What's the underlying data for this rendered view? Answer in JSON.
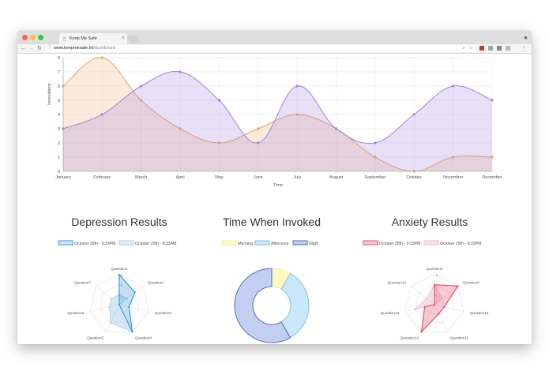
{
  "browser": {
    "tab_title": "Keep Me Safe",
    "url_host": "www.keepmesafe.ml",
    "url_path": "/dashboard"
  },
  "line_chart": {
    "ylabel": "Invocations",
    "xlabel": "Time"
  },
  "radar_depression": {
    "title": "Depression Results",
    "legend": [
      "October 28th - 9:33PM",
      "October 29th - 8:33AM"
    ]
  },
  "donut_time": {
    "title": "Time When Invoked",
    "legend": [
      "Morning",
      "Afternoon",
      "Night"
    ]
  },
  "radar_anxiety": {
    "title": "Anxiety Results",
    "legend": [
      "October 28th - 9:33PM",
      "October 29th - 9:33PM"
    ]
  },
  "chart_data": [
    {
      "type": "area",
      "categories": [
        "January",
        "February",
        "March",
        "April",
        "May",
        "June",
        "July",
        "August",
        "September",
        "October",
        "November",
        "December"
      ],
      "series": [
        {
          "values": [
            6,
            8,
            5,
            3,
            2,
            3,
            4,
            3,
            1,
            0,
            1,
            1
          ],
          "color": "#f0a35e"
        },
        {
          "values": [
            3,
            4,
            6,
            7,
            5,
            2,
            6,
            3,
            2,
            4,
            6,
            5
          ],
          "color": "#9f84e0"
        }
      ],
      "ylim": [
        0,
        8
      ],
      "yticks": [
        0,
        1,
        2,
        3,
        4,
        5,
        6,
        7,
        8
      ],
      "xlabel": "Time",
      "ylabel": "Invocations",
      "grid": true
    },
    {
      "type": "radar",
      "title": "Depression Results",
      "labels": [
        "Question1",
        "Question2",
        "Question3",
        "Question4",
        "Question5",
        "Question6",
        "Question7"
      ],
      "rmax": 3,
      "ticks": [
        "3",
        "2",
        "1"
      ],
      "series": [
        {
          "name": "October 28th - 9:33PM",
          "values": [
            3,
            2,
            1,
            3,
            0,
            0,
            0
          ],
          "color": "#3d9ad8"
        },
        {
          "name": "October 29th - 8:33AM",
          "values": [
            1,
            1,
            0,
            3,
            2,
            1,
            1
          ],
          "color": "#a7c9ea"
        }
      ]
    },
    {
      "type": "pie",
      "title": "Time When Invoked",
      "labels": [
        "Morning",
        "Afternoon",
        "Night"
      ],
      "values": [
        1,
        4,
        7
      ],
      "colors": [
        "#fdfbc4",
        "#cbe7fa",
        "#c2cff0"
      ],
      "borders": [
        "#f3ee9b",
        "#7fc2ee",
        "#4f6fbc"
      ]
    },
    {
      "type": "radar",
      "title": "Anxiety Results",
      "labels": [
        "Question8",
        "Question9",
        "Question10",
        "Question11",
        "Question12",
        "Question13",
        "Question14"
      ],
      "rmax": 3,
      "ticks": [
        "3",
        "2",
        "1"
      ],
      "series": [
        {
          "name": "October 28th - 9:33PM",
          "values": [
            2,
            3,
            1,
            1,
            3,
            1,
            0
          ],
          "color": "#e8506f"
        },
        {
          "name": "October 29th - 9:33PM",
          "values": [
            2,
            1,
            0,
            0,
            0,
            2,
            1
          ],
          "color": "#f3b7c4"
        }
      ]
    }
  ]
}
